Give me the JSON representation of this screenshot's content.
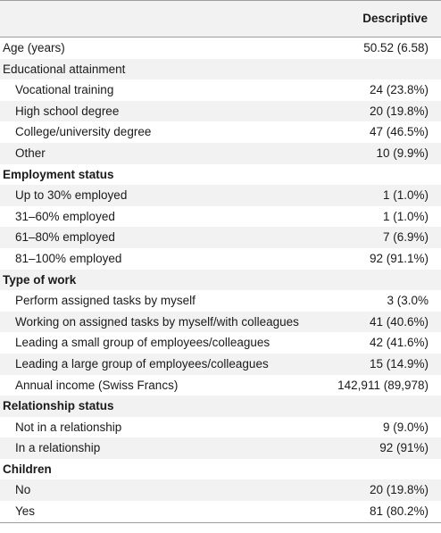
{
  "header": {
    "column": "Descriptive"
  },
  "rows": [
    {
      "label": "Age (years)",
      "value": "50.52 (6.58)",
      "kind": "plain",
      "shaded": false
    },
    {
      "label": "Educational attainment",
      "value": "",
      "kind": "plain",
      "shaded": true
    },
    {
      "label": "Vocational training",
      "value": "24 (23.8%)",
      "kind": "indent",
      "shaded": false
    },
    {
      "label": "High school degree",
      "value": "20 (19.8%)",
      "kind": "indent",
      "shaded": true
    },
    {
      "label": "College/university degree",
      "value": "47 (46.5%)",
      "kind": "indent",
      "shaded": false
    },
    {
      "label": "Other",
      "value": "10 (9.9%)",
      "kind": "indent",
      "shaded": true
    },
    {
      "label": "Employment status",
      "value": "",
      "kind": "section",
      "shaded": false
    },
    {
      "label": "Up to 30% employed",
      "value": "1 (1.0%)",
      "kind": "indent",
      "shaded": true
    },
    {
      "label": "31–60% employed",
      "value": "1 (1.0%)",
      "kind": "indent",
      "shaded": false
    },
    {
      "label": "61–80% employed",
      "value": "7 (6.9%)",
      "kind": "indent",
      "shaded": true
    },
    {
      "label": "81–100% employed",
      "value": "92 (91.1%)",
      "kind": "indent",
      "shaded": false
    },
    {
      "label": "Type of work",
      "value": "",
      "kind": "section",
      "shaded": true
    },
    {
      "label": "Perform assigned tasks by myself",
      "value": "3 (3.0%",
      "kind": "indent",
      "shaded": false
    },
    {
      "label": "Working on assigned tasks by myself/with colleagues",
      "value": "41 (40.6%)",
      "kind": "indent",
      "shaded": true
    },
    {
      "label": "Leading a small group of employees/colleagues",
      "value": "42 (41.6%)",
      "kind": "indent",
      "shaded": false
    },
    {
      "label": "Leading a large group of employees/colleagues",
      "value": "15 (14.9%)",
      "kind": "indent",
      "shaded": true
    },
    {
      "label": "Annual income (Swiss Francs)",
      "value": "142,911 (89,978)",
      "kind": "indent",
      "shaded": false
    },
    {
      "label": "Relationship status",
      "value": "",
      "kind": "section",
      "shaded": true
    },
    {
      "label": "Not in a relationship",
      "value": "9 (9.0%)",
      "kind": "indent",
      "shaded": false
    },
    {
      "label": "In a relationship",
      "value": "92 (91%)",
      "kind": "indent",
      "shaded": true
    },
    {
      "label": "Children",
      "value": "",
      "kind": "section",
      "shaded": false
    },
    {
      "label": "No",
      "value": "20 (19.8%)",
      "kind": "indent",
      "shaded": true
    },
    {
      "label": "Yes",
      "value": "81 (80.2%)",
      "kind": "indent",
      "shaded": false
    }
  ]
}
